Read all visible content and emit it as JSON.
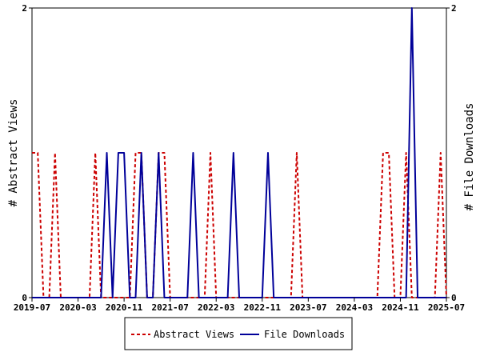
{
  "chart_data": {
    "type": "line",
    "x": [
      "2019-07",
      "2019-08",
      "2019-09",
      "2019-10",
      "2019-11",
      "2019-12",
      "2020-01",
      "2020-02",
      "2020-03",
      "2020-04",
      "2020-05",
      "2020-06",
      "2020-07",
      "2020-08",
      "2020-09",
      "2020-10",
      "2020-11",
      "2020-12",
      "2021-01",
      "2021-02",
      "2021-03",
      "2021-04",
      "2021-05",
      "2021-06",
      "2021-07",
      "2021-08",
      "2021-09",
      "2021-10",
      "2021-11",
      "2021-12",
      "2022-01",
      "2022-02",
      "2022-03",
      "2022-04",
      "2022-05",
      "2022-06",
      "2022-07",
      "2022-08",
      "2022-09",
      "2022-10",
      "2022-11",
      "2022-12",
      "2023-01",
      "2023-02",
      "2023-03",
      "2023-04",
      "2023-05",
      "2023-06",
      "2023-07",
      "2023-08",
      "2023-09",
      "2023-10",
      "2023-11",
      "2023-12",
      "2024-01",
      "2024-02",
      "2024-03",
      "2024-04",
      "2024-05",
      "2024-06",
      "2024-07",
      "2024-08",
      "2024-09",
      "2024-10",
      "2024-11",
      "2024-12",
      "2025-01",
      "2025-02",
      "2025-03",
      "2025-04",
      "2025-05",
      "2025-06",
      "2025-07"
    ],
    "series": [
      {
        "name": "Abstract Views",
        "color": "#cc0000",
        "dash": true,
        "axis": "left",
        "values": [
          1,
          1,
          0,
          0,
          1,
          0,
          0,
          0,
          0,
          0,
          0,
          1,
          0,
          0,
          0,
          0,
          0,
          0,
          1,
          1,
          0,
          0,
          1,
          1,
          0,
          0,
          0,
          0,
          0,
          0,
          0,
          1,
          0,
          0,
          0,
          0,
          0,
          0,
          0,
          0,
          0,
          0,
          0,
          0,
          0,
          0,
          1,
          0,
          0,
          0,
          0,
          0,
          0,
          0,
          0,
          0,
          0,
          0,
          0,
          0,
          0,
          1,
          1,
          0,
          0,
          1,
          0,
          0,
          0,
          0,
          0,
          1,
          0
        ]
      },
      {
        "name": "File Downloads",
        "color": "#000099",
        "dash": false,
        "axis": "right",
        "values": [
          0,
          0,
          0,
          0,
          0,
          0,
          0,
          0,
          0,
          0,
          0,
          0,
          0,
          1,
          0,
          1,
          1,
          0,
          0,
          1,
          0,
          0,
          1,
          0,
          0,
          0,
          0,
          0,
          1,
          0,
          0,
          0,
          0,
          0,
          0,
          1,
          0,
          0,
          0,
          0,
          0,
          1,
          0,
          0,
          0,
          0,
          0,
          0,
          0,
          0,
          0,
          0,
          0,
          0,
          0,
          0,
          0,
          0,
          0,
          0,
          0,
          0,
          0,
          0,
          0,
          0,
          2,
          0,
          0,
          0,
          0,
          0,
          0
        ]
      }
    ],
    "x_tick_labels": [
      "2019-07",
      "2020-03",
      "2020-11",
      "2021-07",
      "2022-03",
      "2022-11",
      "2023-07",
      "2024-03",
      "2024-11",
      "2025-07"
    ],
    "ylabel": "# Abstract Views",
    "ylabel_right": "# File Downloads",
    "ylim": [
      0,
      2
    ],
    "ylim_right": [
      0,
      2
    ],
    "y_tick_labels": [
      "0",
      "2"
    ],
    "y_tick_labels_right": [
      "0",
      "2"
    ],
    "grid": false,
    "legend_placement": "bottom-center"
  }
}
